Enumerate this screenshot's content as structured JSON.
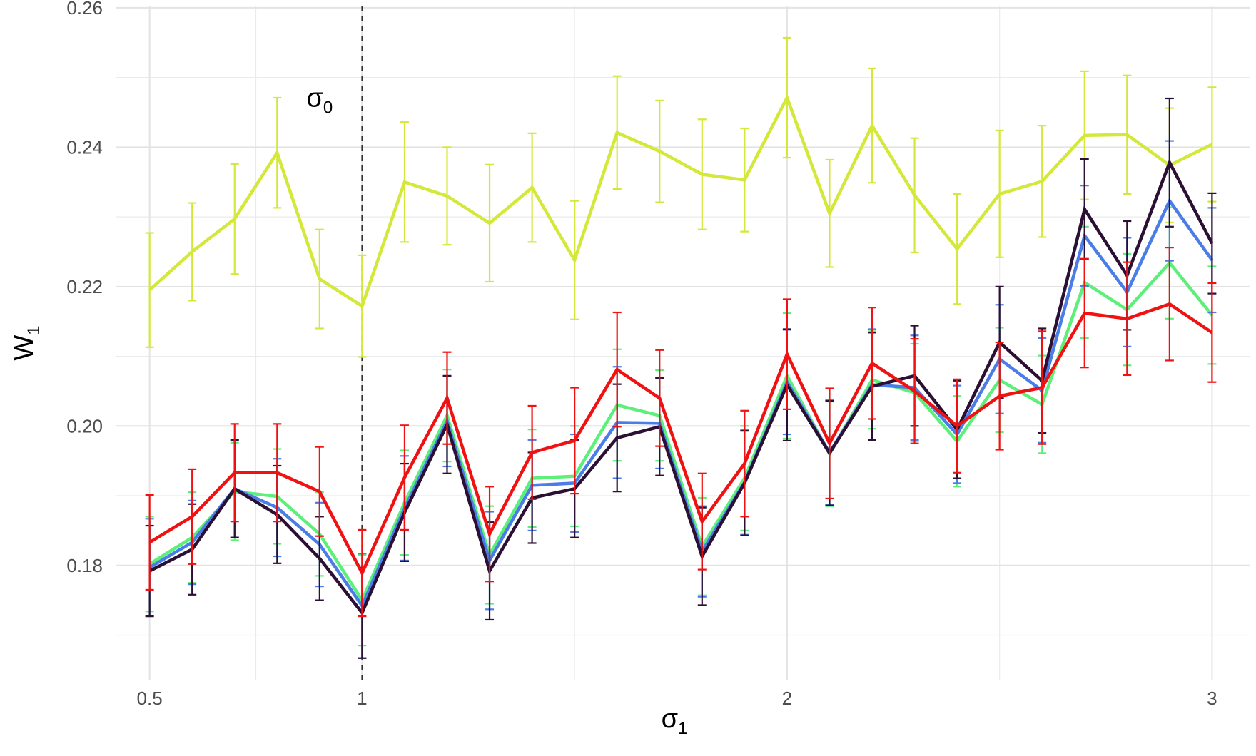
{
  "chart_data": {
    "type": "line",
    "xlabel": "σ",
    "xlabel_sub": "1",
    "ylabel": "W",
    "ylabel_sub": "1",
    "xlim": [
      0.42,
      3.09
    ],
    "ylim": [
      0.1635,
      0.2603
    ],
    "xticks": [
      0.5,
      1,
      2,
      3
    ],
    "xtick_labels": [
      "0.5",
      "1",
      "2",
      "3"
    ],
    "yticks": [
      0.18,
      0.2,
      0.22,
      0.24,
      0.26
    ],
    "ytick_labels": [
      "0.18",
      "0.20",
      "0.22",
      "0.24",
      "0.26"
    ],
    "grid": true,
    "vline": {
      "x": 1,
      "style": "dashed",
      "label": "σ",
      "label_sub": "0",
      "label_x": 0.9,
      "label_y": 0.2458
    },
    "x": [
      0.5,
      0.6,
      0.7,
      0.8,
      0.9,
      1.0,
      1.1,
      1.2,
      1.3,
      1.4,
      1.5,
      1.6,
      1.7,
      1.8,
      1.9,
      2.0,
      2.1,
      2.2,
      2.3,
      2.4,
      2.5,
      2.6,
      2.7,
      2.8,
      2.9,
      3.0
    ],
    "series": [
      {
        "color": "#d4e83a",
        "values": [
          0.2195,
          0.225,
          0.2297,
          0.2392,
          0.2211,
          0.2172,
          0.235,
          0.233,
          0.2291,
          0.2342,
          0.2238,
          0.2421,
          0.2394,
          0.2361,
          0.2353,
          0.2471,
          0.2305,
          0.2431,
          0.2331,
          0.2254,
          0.2333,
          0.2351,
          0.2417,
          0.2418,
          0.2374,
          0.2404
        ],
        "err": [
          0.0082,
          0.007,
          0.0079,
          0.0079,
          0.0071,
          0.0073,
          0.0086,
          0.007,
          0.0084,
          0.0078,
          0.0085,
          0.0081,
          0.0073,
          0.0079,
          0.0074,
          0.0086,
          0.0077,
          0.0082,
          0.0082,
          0.0079,
          0.0091,
          0.008,
          0.0092,
          0.0085,
          0.0082,
          0.0082
        ]
      },
      {
        "color": "#5cf07a",
        "values": [
          0.1802,
          0.184,
          0.1906,
          0.1899,
          0.1845,
          0.175,
          0.189,
          0.2015,
          0.1815,
          0.1925,
          0.1928,
          0.203,
          0.2015,
          0.1827,
          0.1925,
          0.2072,
          0.196,
          0.2066,
          0.2048,
          0.1978,
          0.2066,
          0.2031,
          0.2206,
          0.2167,
          0.2234,
          0.2159
        ],
        "err": [
          0.0068,
          0.0065,
          0.007,
          0.0068,
          0.006,
          0.0065,
          0.0075,
          0.0066,
          0.007,
          0.007,
          0.0072,
          0.008,
          0.0065,
          0.007,
          0.0075,
          0.009,
          0.0075,
          0.007,
          0.007,
          0.0065,
          0.0075,
          0.007,
          0.008,
          0.008,
          0.008,
          0.007
        ]
      },
      {
        "color": "#4a7de8",
        "values": [
          0.1797,
          0.1833,
          0.191,
          0.1883,
          0.183,
          0.1742,
          0.1882,
          0.2007,
          0.1807,
          0.1915,
          0.1918,
          0.2005,
          0.2004,
          0.182,
          0.1919,
          0.2063,
          0.1962,
          0.2059,
          0.2055,
          0.1988,
          0.2096,
          0.2051,
          0.2273,
          0.2192,
          0.2323,
          0.2238
        ],
        "err": [
          0.007,
          0.006,
          0.007,
          0.007,
          0.006,
          0.0075,
          0.0075,
          0.0065,
          0.007,
          0.0065,
          0.007,
          0.008,
          0.0065,
          0.0065,
          0.0075,
          0.0075,
          0.0075,
          0.008,
          0.0075,
          0.007,
          0.0078,
          0.0075,
          0.0072,
          0.0078,
          0.0086,
          0.0075
        ]
      },
      {
        "color": "#2b1033",
        "values": [
          0.1792,
          0.1823,
          0.191,
          0.1873,
          0.181,
          0.1732,
          0.1876,
          0.2002,
          0.1792,
          0.1897,
          0.191,
          0.1983,
          0.1999,
          0.1813,
          0.1918,
          0.2059,
          0.1961,
          0.2057,
          0.2072,
          0.1995,
          0.212,
          0.2065,
          0.2311,
          0.2216,
          0.2378,
          0.2262
        ],
        "err": [
          0.0065,
          0.0065,
          0.007,
          0.007,
          0.006,
          0.0065,
          0.007,
          0.007,
          0.007,
          0.0065,
          0.007,
          0.0077,
          0.007,
          0.007,
          0.0075,
          0.008,
          0.0075,
          0.0077,
          0.0072,
          0.007,
          0.008,
          0.0075,
          0.0072,
          0.0078,
          0.0092,
          0.0072
        ]
      },
      {
        "color": "#f01212",
        "values": [
          0.1833,
          0.187,
          0.1933,
          0.1933,
          0.1906,
          0.1789,
          0.1926,
          0.204,
          0.1845,
          0.1962,
          0.1979,
          0.2081,
          0.204,
          0.1863,
          0.1946,
          0.2103,
          0.1975,
          0.209,
          0.205,
          0.2,
          0.2043,
          0.2055,
          0.2162,
          0.2154,
          0.2175,
          0.2134
        ],
        "err": [
          0.0068,
          0.0068,
          0.007,
          0.007,
          0.0064,
          0.0062,
          0.0075,
          0.0066,
          0.0068,
          0.0067,
          0.0076,
          0.0082,
          0.0069,
          0.0069,
          0.0076,
          0.0079,
          0.0079,
          0.008,
          0.0075,
          0.0067,
          0.0077,
          0.0081,
          0.0078,
          0.0081,
          0.0081,
          0.0071
        ]
      }
    ]
  }
}
